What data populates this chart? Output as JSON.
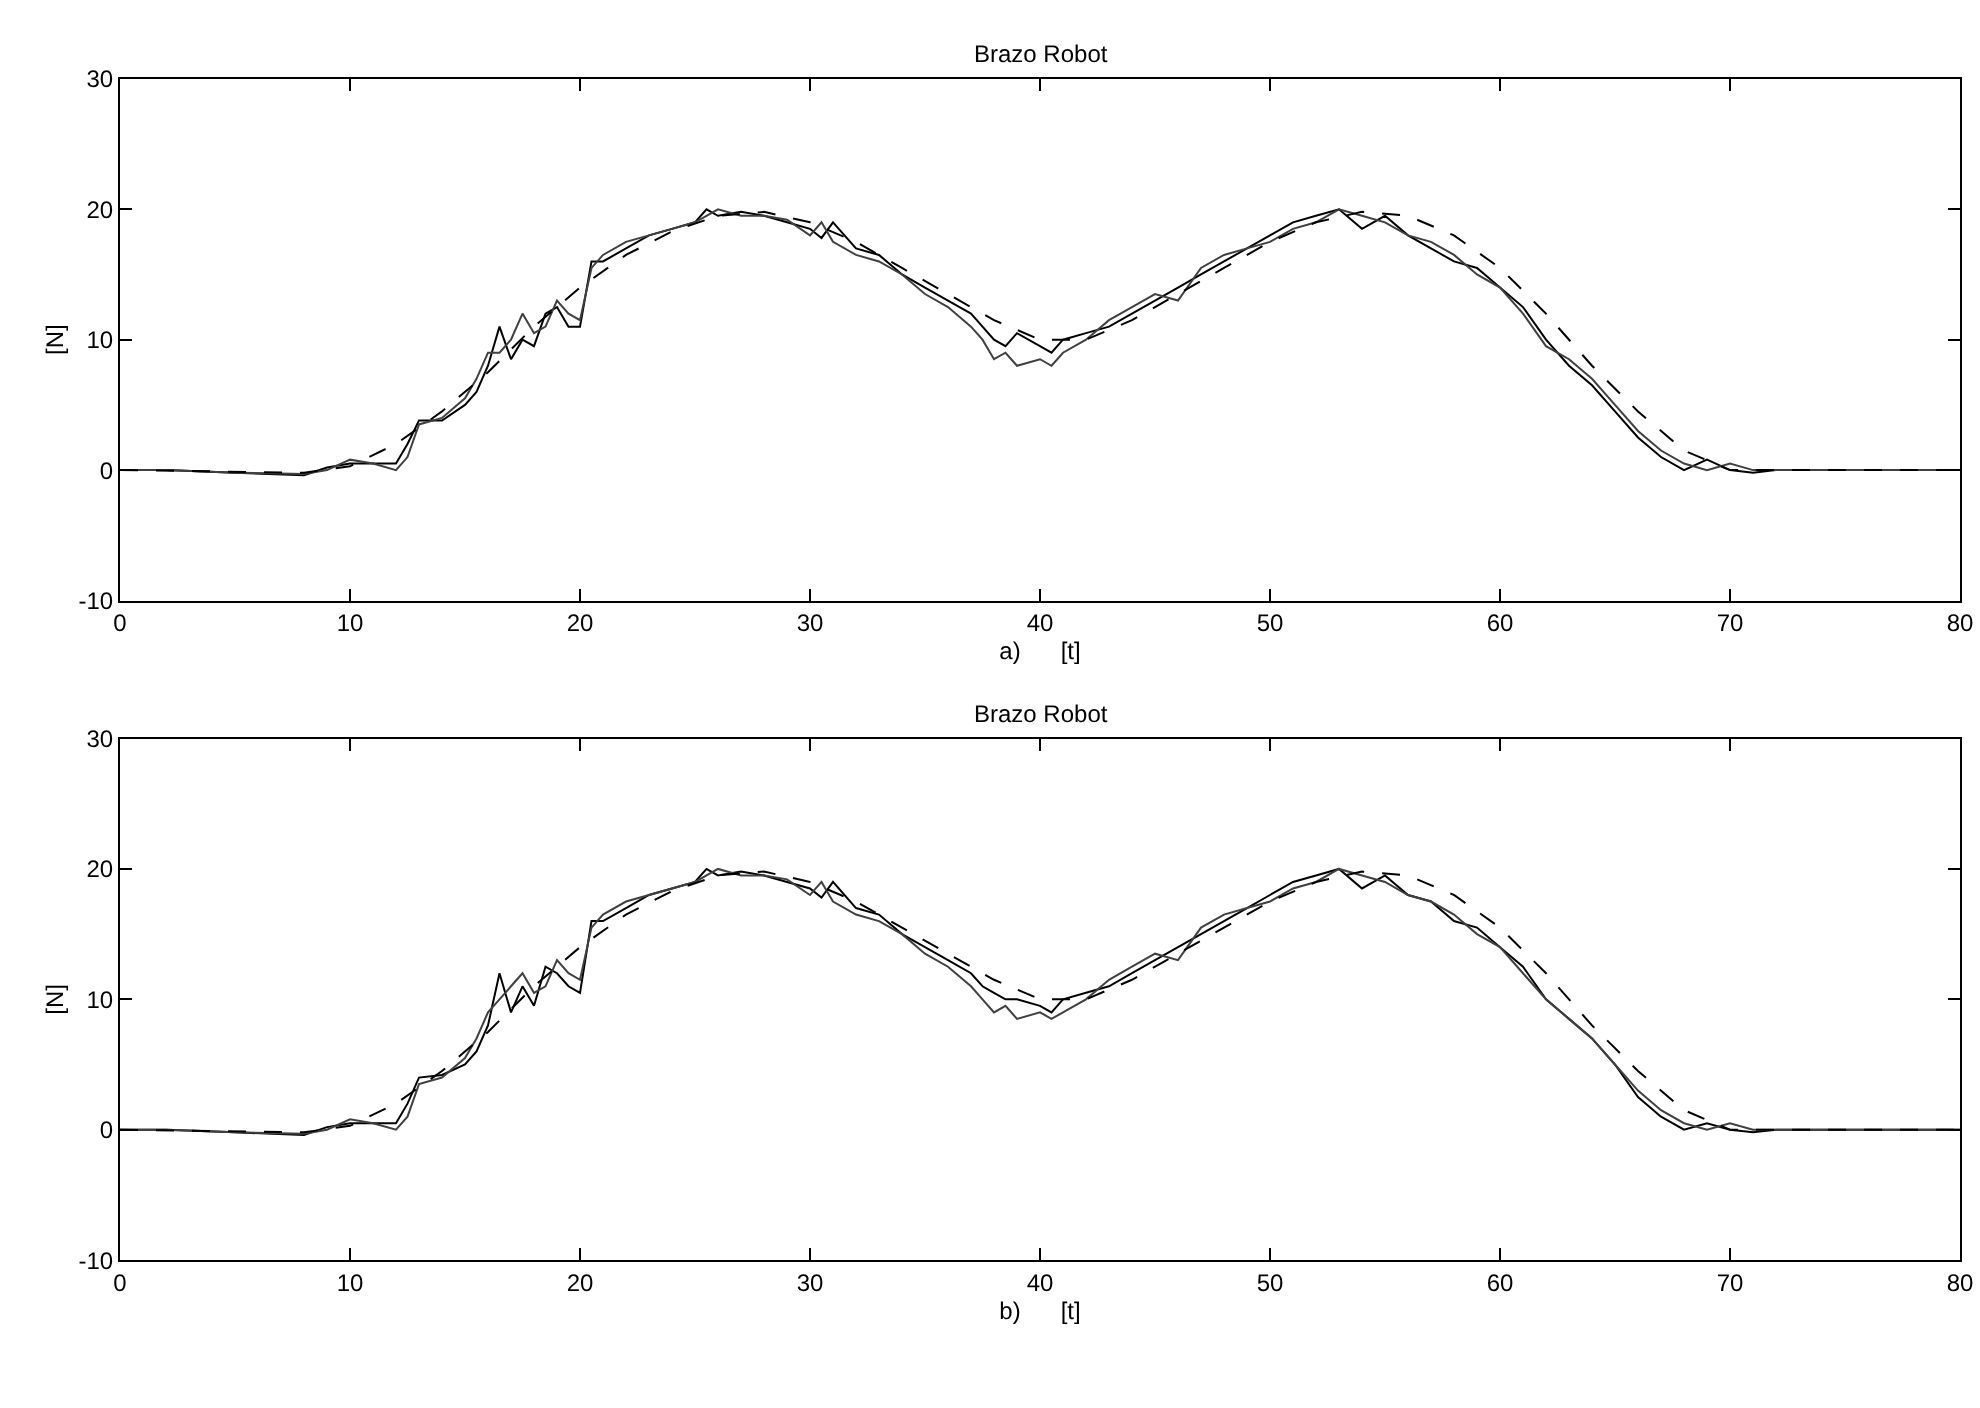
{
  "chart_data": [
    {
      "type": "line",
      "title": "Brazo Robot",
      "xlabel": "a)      [t]",
      "ylabel": "[N]",
      "xlim": [
        0,
        80
      ],
      "xticks": [
        0,
        10,
        20,
        30,
        40,
        50,
        60,
        70,
        80
      ],
      "ylim": [
        -10,
        30
      ],
      "yticks": [
        -10,
        0,
        10,
        20,
        30
      ],
      "series": [
        {
          "color": "#000000",
          "line_style": "solid",
          "x": [
            0,
            2,
            5,
            8,
            9,
            10,
            11,
            12,
            12.5,
            13,
            14,
            15,
            15.5,
            16,
            16.5,
            17,
            17.5,
            18,
            18.5,
            19,
            19.5,
            20,
            20.5,
            21,
            22,
            23,
            24,
            25,
            25.5,
            26,
            27,
            28,
            29,
            30,
            30.5,
            31,
            32,
            33,
            34,
            35,
            36,
            37,
            37.5,
            38,
            38.5,
            39,
            40,
            40.5,
            41,
            42,
            43,
            44,
            45,
            46,
            47,
            48,
            49,
            50,
            51,
            52,
            53,
            54,
            55,
            56,
            57,
            58,
            59,
            60,
            61,
            62,
            63,
            64,
            65,
            66,
            67,
            68,
            69,
            70,
            71,
            72,
            75,
            80
          ],
          "values": [
            0,
            0,
            -0.2,
            -0.4,
            0.2,
            0.5,
            0.5,
            0.5,
            2,
            3.8,
            3.8,
            5,
            6,
            8,
            11,
            8.5,
            10,
            9.5,
            12,
            12.5,
            11,
            11,
            16,
            16,
            17,
            18,
            18.5,
            19,
            20,
            19.5,
            19.8,
            19.5,
            19,
            18.5,
            17.8,
            19,
            17,
            16.5,
            15,
            14,
            13,
            12,
            11,
            10,
            9.5,
            10.5,
            9.5,
            9,
            10,
            10.5,
            11,
            12,
            13,
            14,
            15,
            16,
            17,
            18,
            19,
            19.5,
            20,
            18.5,
            19.5,
            18,
            17,
            16,
            15.5,
            14,
            12.5,
            10,
            8,
            6.5,
            4.5,
            2.5,
            1,
            0,
            0.8,
            0,
            -0.2,
            0,
            0,
            0
          ]
        },
        {
          "color": "#404040",
          "line_style": "solid",
          "x": [
            0,
            2,
            5,
            8,
            9,
            10,
            11,
            12,
            12.5,
            13,
            14,
            15,
            15.5,
            16,
            16.5,
            17,
            17.5,
            18,
            18.5,
            19,
            19.5,
            20,
            20.5,
            21,
            22,
            23,
            24,
            25,
            25.5,
            26,
            27,
            28,
            29,
            30,
            30.5,
            31,
            32,
            33,
            34,
            35,
            36,
            37,
            37.5,
            38,
            38.5,
            39,
            40,
            40.5,
            41,
            42,
            43,
            44,
            45,
            46,
            47,
            48,
            49,
            50,
            51,
            52,
            53,
            54,
            55,
            56,
            57,
            58,
            59,
            60,
            61,
            62,
            63,
            64,
            65,
            66,
            67,
            68,
            69,
            70,
            71,
            72,
            75,
            80
          ],
          "values": [
            0,
            0,
            -0.2,
            -0.3,
            0,
            0.8,
            0.5,
            0,
            1,
            3.5,
            4,
            5.5,
            7,
            9,
            9,
            10,
            12,
            10.5,
            11,
            13,
            12,
            11.5,
            15.5,
            16.5,
            17.5,
            18,
            18.5,
            19,
            19.5,
            20,
            19.5,
            19.5,
            19.2,
            18,
            19,
            17.5,
            16.5,
            16,
            15,
            13.5,
            12.5,
            11,
            10,
            8.5,
            9,
            8,
            8.5,
            8,
            9,
            10,
            11.5,
            12.5,
            13.5,
            13,
            15.5,
            16.5,
            17,
            17.5,
            18.5,
            19,
            20,
            19.5,
            19,
            18,
            17.5,
            16.5,
            15,
            14,
            12,
            9.5,
            8.5,
            7,
            5,
            3,
            1.5,
            0.5,
            0,
            0.5,
            0,
            0,
            0,
            0
          ]
        },
        {
          "color": "#000000",
          "line_style": "dashed",
          "x": [
            0,
            8,
            10,
            12,
            14,
            16,
            18,
            20,
            22,
            24,
            26,
            28,
            30,
            32,
            34,
            36,
            38,
            40,
            42,
            44,
            46,
            48,
            50,
            52,
            54,
            56,
            58,
            60,
            62,
            64,
            66,
            68,
            70,
            80
          ],
          "values": [
            0,
            -0.2,
            0.3,
            2,
            4.5,
            7.5,
            11,
            14,
            16.5,
            18.3,
            19.5,
            19.8,
            19,
            17.5,
            15.5,
            13.5,
            11.5,
            10,
            10,
            11.5,
            13.5,
            15.5,
            17.5,
            19,
            19.8,
            19.5,
            18,
            15.5,
            12,
            8,
            4.5,
            1.5,
            0,
            0
          ]
        }
      ]
    },
    {
      "type": "line",
      "title": "Brazo Robot",
      "xlabel": "b)      [t]",
      "ylabel": "[N]",
      "xlim": [
        0,
        80
      ],
      "xticks": [
        0,
        10,
        20,
        30,
        40,
        50,
        60,
        70,
        80
      ],
      "ylim": [
        -10,
        30
      ],
      "yticks": [
        -10,
        0,
        10,
        20,
        30
      ],
      "series": [
        {
          "color": "#000000",
          "line_style": "solid",
          "x": [
            0,
            2,
            5,
            8,
            9,
            10,
            11,
            12,
            12.5,
            13,
            14,
            15,
            15.5,
            16,
            16.5,
            17,
            17.5,
            18,
            18.5,
            19,
            19.5,
            20,
            20.5,
            21,
            22,
            23,
            24,
            25,
            25.5,
            26,
            27,
            28,
            29,
            30,
            30.5,
            31,
            32,
            33,
            34,
            35,
            36,
            37,
            37.5,
            38,
            38.5,
            39,
            40,
            40.5,
            41,
            42,
            43,
            44,
            45,
            46,
            47,
            48,
            49,
            50,
            51,
            52,
            53,
            54,
            55,
            56,
            57,
            58,
            59,
            60,
            61,
            62,
            63,
            64,
            65,
            66,
            67,
            68,
            69,
            70,
            71,
            72,
            75,
            80
          ],
          "values": [
            0,
            0,
            -0.2,
            -0.4,
            0.2,
            0.5,
            0.5,
            0.5,
            2,
            4,
            4.2,
            5,
            6,
            8,
            12,
            9,
            11,
            9.5,
            12.5,
            12,
            11,
            10.5,
            16,
            16,
            17,
            18,
            18.5,
            19,
            20,
            19.5,
            19.8,
            19.5,
            19,
            18.5,
            17.8,
            19,
            17,
            16.5,
            15,
            14,
            13,
            12,
            11,
            10.5,
            10,
            10,
            9.5,
            9,
            10,
            10.5,
            11,
            12,
            13,
            14,
            15,
            16,
            17,
            18,
            19,
            19.5,
            20,
            18.5,
            19.5,
            18,
            17.5,
            16,
            15.5,
            14,
            12.5,
            10,
            8.5,
            7,
            5,
            2.5,
            1,
            0,
            0.5,
            0,
            -0.2,
            0,
            0,
            0
          ]
        },
        {
          "color": "#404040",
          "line_style": "solid",
          "x": [
            0,
            2,
            5,
            8,
            9,
            10,
            11,
            12,
            12.5,
            13,
            14,
            15,
            15.5,
            16,
            16.5,
            17,
            17.5,
            18,
            18.5,
            19,
            19.5,
            20,
            20.5,
            21,
            22,
            23,
            24,
            25,
            25.5,
            26,
            27,
            28,
            29,
            30,
            30.5,
            31,
            32,
            33,
            34,
            35,
            36,
            37,
            37.5,
            38,
            38.5,
            39,
            40,
            40.5,
            41,
            42,
            43,
            44,
            45,
            46,
            47,
            48,
            49,
            50,
            51,
            52,
            53,
            54,
            55,
            56,
            57,
            58,
            59,
            60,
            61,
            62,
            63,
            64,
            65,
            66,
            67,
            68,
            69,
            70,
            71,
            72,
            75,
            80
          ],
          "values": [
            0,
            0,
            -0.2,
            -0.3,
            0,
            0.8,
            0.5,
            0,
            1,
            3.5,
            4,
            5.5,
            7,
            9,
            10,
            11,
            12,
            10.5,
            11,
            13,
            12,
            11.5,
            15.5,
            16.5,
            17.5,
            18,
            18.5,
            19,
            19.5,
            20,
            19.5,
            19.5,
            19.2,
            18,
            19,
            17.5,
            16.5,
            16,
            15,
            13.5,
            12.5,
            11,
            10,
            9,
            9.5,
            8.5,
            9,
            8.5,
            9,
            10,
            11.5,
            12.5,
            13.5,
            13,
            15.5,
            16.5,
            17,
            17.5,
            18.5,
            19,
            20,
            19.5,
            19,
            18,
            17.5,
            16.5,
            15,
            14,
            12,
            10,
            8.5,
            7,
            5,
            3,
            1.5,
            0.5,
            0,
            0.5,
            0,
            0,
            0,
            0
          ]
        },
        {
          "color": "#000000",
          "line_style": "dashed",
          "x": [
            0,
            8,
            10,
            12,
            14,
            16,
            18,
            20,
            22,
            24,
            26,
            28,
            30,
            32,
            34,
            36,
            38,
            40,
            42,
            44,
            46,
            48,
            50,
            52,
            54,
            56,
            58,
            60,
            62,
            64,
            66,
            68,
            70,
            80
          ],
          "values": [
            0,
            -0.2,
            0.3,
            2,
            4.5,
            7.5,
            11,
            14,
            16.5,
            18.3,
            19.5,
            19.8,
            19,
            17.5,
            15.5,
            13.5,
            11.5,
            10,
            10,
            11.5,
            13.5,
            15.5,
            17.5,
            19,
            19.8,
            19.5,
            18,
            15.5,
            12,
            8,
            4.5,
            1.5,
            0,
            0
          ]
        }
      ]
    }
  ]
}
